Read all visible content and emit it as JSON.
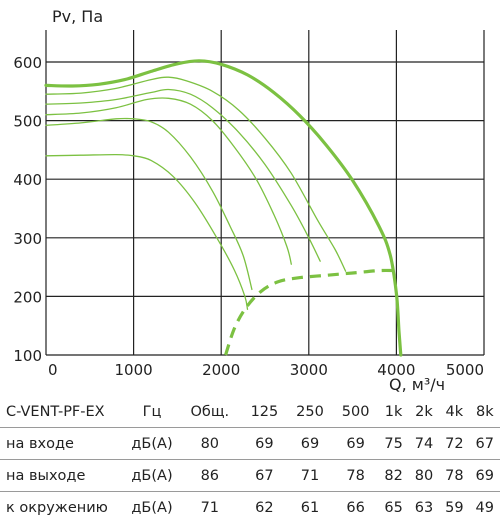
{
  "chart_data": {
    "type": "line",
    "ylabel": "Pv, Па",
    "xlabel": "Q, м³/ч",
    "xlim": [
      0,
      5000
    ],
    "ylim": [
      100,
      650
    ],
    "x_ticks": [
      "0",
      "1000",
      "2000",
      "3000",
      "4000",
      "5000"
    ],
    "y_ticks": [
      "100",
      "200",
      "300",
      "400",
      "500",
      "600"
    ],
    "grid": true,
    "colors": {
      "curve": "#7cc142",
      "grid": "#222222"
    },
    "series": [
      {
        "style": "thick",
        "points": [
          [
            0,
            560
          ],
          [
            300,
            559
          ],
          [
            600,
            562
          ],
          [
            900,
            570
          ],
          [
            1200,
            584
          ],
          [
            1500,
            597
          ],
          [
            1750,
            602
          ],
          [
            2000,
            596
          ],
          [
            2300,
            578
          ],
          [
            2600,
            548
          ],
          [
            2900,
            508
          ],
          [
            3200,
            458
          ],
          [
            3500,
            398
          ],
          [
            3800,
            320
          ],
          [
            3930,
            270
          ],
          [
            4000,
            205
          ],
          [
            4030,
            140
          ],
          [
            4050,
            100
          ]
        ]
      },
      {
        "style": "thin",
        "points": [
          [
            0,
            545
          ],
          [
            400,
            547
          ],
          [
            800,
            555
          ],
          [
            1200,
            570
          ],
          [
            1400,
            574
          ],
          [
            1600,
            568
          ],
          [
            1900,
            550
          ],
          [
            2200,
            518
          ],
          [
            2500,
            470
          ],
          [
            2800,
            410
          ],
          [
            3100,
            330
          ],
          [
            3300,
            280
          ],
          [
            3420,
            243
          ]
        ]
      },
      {
        "style": "thin",
        "points": [
          [
            0,
            528
          ],
          [
            400,
            530
          ],
          [
            800,
            536
          ],
          [
            1200,
            548
          ],
          [
            1400,
            553
          ],
          [
            1650,
            545
          ],
          [
            1900,
            522
          ],
          [
            2200,
            480
          ],
          [
            2500,
            425
          ],
          [
            2800,
            355
          ],
          [
            3000,
            300
          ],
          [
            3130,
            260
          ]
        ]
      },
      {
        "style": "thin",
        "points": [
          [
            0,
            510
          ],
          [
            400,
            513
          ],
          [
            800,
            522
          ],
          [
            1150,
            536
          ],
          [
            1400,
            538
          ],
          [
            1650,
            528
          ],
          [
            1900,
            500
          ],
          [
            2150,
            455
          ],
          [
            2400,
            400
          ],
          [
            2600,
            340
          ],
          [
            2750,
            285
          ],
          [
            2800,
            255
          ]
        ]
      },
      {
        "style": "thin",
        "points": [
          [
            0,
            492
          ],
          [
            400,
            496
          ],
          [
            800,
            503
          ],
          [
            1000,
            503
          ],
          [
            1200,
            498
          ],
          [
            1400,
            480
          ],
          [
            1650,
            438
          ],
          [
            1900,
            380
          ],
          [
            2100,
            320
          ],
          [
            2250,
            270
          ],
          [
            2350,
            212
          ]
        ]
      },
      {
        "style": "thin",
        "points": [
          [
            0,
            440
          ],
          [
            400,
            441
          ],
          [
            800,
            442
          ],
          [
            1000,
            440
          ],
          [
            1200,
            432
          ],
          [
            1450,
            405
          ],
          [
            1700,
            360
          ],
          [
            1950,
            300
          ],
          [
            2150,
            245
          ],
          [
            2270,
            200
          ],
          [
            2300,
            178
          ]
        ]
      },
      {
        "style": "dashed",
        "points": [
          [
            2050,
            100
          ],
          [
            2150,
            145
          ],
          [
            2280,
            180
          ],
          [
            2450,
            208
          ],
          [
            2650,
            225
          ],
          [
            2900,
            232
          ],
          [
            3200,
            236
          ],
          [
            3500,
            240
          ],
          [
            3800,
            244
          ],
          [
            4000,
            244
          ]
        ]
      }
    ]
  },
  "table": {
    "model": "C-VENT-PF-EX",
    "columns": [
      "Гц",
      "Общ.",
      "125",
      "250",
      "500",
      "1k",
      "2k",
      "4k",
      "8k"
    ],
    "rows": [
      {
        "label": "на входе",
        "unit": "дБ(А)",
        "values": [
          "80",
          "69",
          "69",
          "69",
          "75",
          "74",
          "72",
          "67"
        ]
      },
      {
        "label": "на выходе",
        "unit": "дБ(А)",
        "values": [
          "86",
          "67",
          "71",
          "78",
          "82",
          "80",
          "78",
          "69"
        ]
      },
      {
        "label": "к окружению",
        "unit": "дБ(А)",
        "values": [
          "71",
          "62",
          "61",
          "66",
          "65",
          "63",
          "59",
          "49"
        ]
      }
    ]
  }
}
